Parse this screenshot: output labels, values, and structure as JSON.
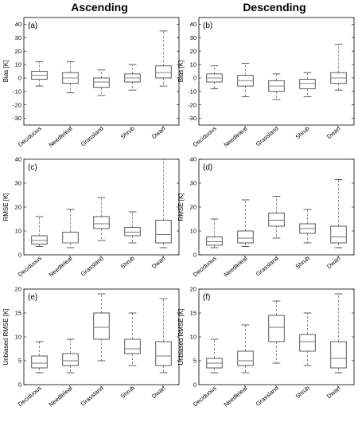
{
  "column_titles": [
    "Ascending",
    "Descending"
  ],
  "chart_data": [
    {
      "type": "boxplot",
      "panel_label": "(a)",
      "column": "Ascending",
      "ylabel": "Bias [K]",
      "ylim": [
        -35,
        45
      ],
      "yticks": [
        -30,
        -20,
        -10,
        0,
        10,
        20,
        30,
        40
      ],
      "categories": [
        "Deciduous",
        "Needleleaf",
        "Grassland",
        "Shrub",
        "Dwarf"
      ],
      "boxes": [
        {
          "whisker_low": -6,
          "q1": -1,
          "median": 2,
          "q3": 5,
          "whisker_high": 12
        },
        {
          "whisker_low": -11,
          "q1": -4,
          "median": 0,
          "q3": 4,
          "whisker_high": 12
        },
        {
          "whisker_low": -13,
          "q1": -7,
          "median": -3,
          "q3": 0,
          "whisker_high": 6
        },
        {
          "whisker_low": -9,
          "q1": -3,
          "median": 0,
          "q3": 3,
          "whisker_high": 10
        },
        {
          "whisker_low": -6,
          "q1": 0,
          "median": 4,
          "q3": 9,
          "whisker_high": 35
        }
      ]
    },
    {
      "type": "boxplot",
      "panel_label": "(b)",
      "column": "Descending",
      "ylabel": "Bias [K]",
      "ylim": [
        -35,
        45
      ],
      "yticks": [
        -30,
        -20,
        -10,
        0,
        10,
        20,
        30,
        40
      ],
      "categories": [
        "Deciduous",
        "Needleleaf",
        "Grassland",
        "Shrub",
        "Dwarf"
      ],
      "boxes": [
        {
          "whisker_low": -8,
          "q1": -3,
          "median": 0,
          "q3": 3,
          "whisker_high": 9
        },
        {
          "whisker_low": -14,
          "q1": -6,
          "median": -2,
          "q3": 2,
          "whisker_high": 11
        },
        {
          "whisker_low": -16,
          "q1": -10,
          "median": -6,
          "q3": -2,
          "whisker_high": 3
        },
        {
          "whisker_low": -14,
          "q1": -8,
          "median": -4,
          "q3": -1,
          "whisker_high": 4
        },
        {
          "whisker_low": -9,
          "q1": -4,
          "median": 0,
          "q3": 4,
          "whisker_high": 25
        }
      ]
    },
    {
      "type": "boxplot",
      "panel_label": "(c)",
      "column": "Ascending",
      "ylabel": "RMSE [K]",
      "ylim": [
        0,
        40
      ],
      "yticks": [
        0,
        10,
        20,
        30,
        40
      ],
      "categories": [
        "Deciduous",
        "Needleleaf",
        "Grassland",
        "Shrub",
        "Dwarf"
      ],
      "boxes": [
        {
          "whisker_low": 3.5,
          "q1": 4.5,
          "median": 6,
          "q3": 8,
          "whisker_high": 16
        },
        {
          "whisker_low": 3,
          "q1": 5,
          "median": 5,
          "q3": 9.5,
          "whisker_high": 19
        },
        {
          "whisker_low": 6,
          "q1": 11,
          "median": 13,
          "q3": 16,
          "whisker_high": 24
        },
        {
          "whisker_low": 5,
          "q1": 8,
          "median": 9.5,
          "q3": 11.5,
          "whisker_high": 18
        },
        {
          "whisker_low": 3,
          "q1": 5,
          "median": 8.5,
          "q3": 14.5,
          "whisker_high": 40
        }
      ]
    },
    {
      "type": "boxplot",
      "panel_label": "(d)",
      "column": "Descending",
      "ylabel": "RMSE [K]",
      "ylim": [
        0,
        40
      ],
      "yticks": [
        0,
        10,
        20,
        30,
        40
      ],
      "categories": [
        "Deciduous",
        "Needleleaf",
        "Grassland",
        "Shrub",
        "Dwarf"
      ],
      "boxes": [
        {
          "whisker_low": 3,
          "q1": 4,
          "median": 5.5,
          "q3": 7.5,
          "whisker_high": 15
        },
        {
          "whisker_low": 3.5,
          "q1": 5,
          "median": 7,
          "q3": 10,
          "whisker_high": 23
        },
        {
          "whisker_low": 7,
          "q1": 12,
          "median": 14.5,
          "q3": 17.5,
          "whisker_high": 24.5
        },
        {
          "whisker_low": 5,
          "q1": 9,
          "median": 11,
          "q3": 13,
          "whisker_high": 19
        },
        {
          "whisker_low": 3,
          "q1": 5,
          "median": 7.5,
          "q3": 12,
          "whisker_high": 31.5
        }
      ]
    },
    {
      "type": "boxplot",
      "panel_label": "(e)",
      "column": "Ascending",
      "ylabel": "Unbiased RMSE [K]",
      "ylim": [
        0,
        20
      ],
      "yticks": [
        0,
        5,
        10,
        15,
        20
      ],
      "categories": [
        "Deciduous",
        "Needleleaf",
        "Grassland",
        "Shrub",
        "Dwarf"
      ],
      "boxes": [
        {
          "whisker_low": 2.5,
          "q1": 3.5,
          "median": 4.5,
          "q3": 6,
          "whisker_high": 9
        },
        {
          "whisker_low": 2.5,
          "q1": 4,
          "median": 5,
          "q3": 6.5,
          "whisker_high": 9.5
        },
        {
          "whisker_low": 5,
          "q1": 9.5,
          "median": 12,
          "q3": 15,
          "whisker_high": 19
        },
        {
          "whisker_low": 4,
          "q1": 6.5,
          "median": 7.5,
          "q3": 9.5,
          "whisker_high": 15
        },
        {
          "whisker_low": 2.5,
          "q1": 4,
          "median": 6,
          "q3": 9,
          "whisker_high": 18
        }
      ]
    },
    {
      "type": "boxplot",
      "panel_label": "(f)",
      "column": "Descending",
      "ylabel": "Unbiased RMSE [K]",
      "ylim": [
        0,
        20
      ],
      "yticks": [
        0,
        5,
        10,
        15,
        20
      ],
      "categories": [
        "Deciduous",
        "Needleleaf",
        "Grassland",
        "Shrub",
        "Dwarf"
      ],
      "boxes": [
        {
          "whisker_low": 2.5,
          "q1": 3.5,
          "median": 4.5,
          "q3": 5.5,
          "whisker_high": 9.5
        },
        {
          "whisker_low": 2.5,
          "q1": 4,
          "median": 5,
          "q3": 7,
          "whisker_high": 12.5
        },
        {
          "whisker_low": 4.5,
          "q1": 9,
          "median": 12,
          "q3": 14.5,
          "whisker_high": 17.5
        },
        {
          "whisker_low": 4,
          "q1": 7,
          "median": 9,
          "q3": 10.5,
          "whisker_high": 15
        },
        {
          "whisker_low": 2.5,
          "q1": 3.5,
          "median": 5.5,
          "q3": 9,
          "whisker_high": 19
        }
      ]
    }
  ]
}
